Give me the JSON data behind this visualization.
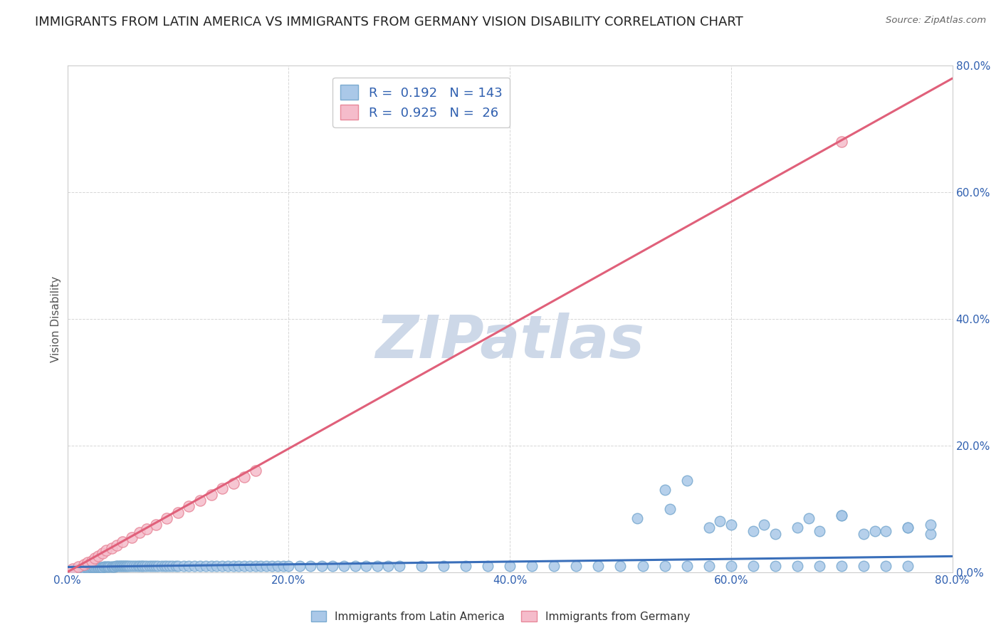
{
  "title": "IMMIGRANTS FROM LATIN AMERICA VS IMMIGRANTS FROM GERMANY VISION DISABILITY CORRELATION CHART",
  "source": "Source: ZipAtlas.com",
  "ylabel": "Vision Disability",
  "watermark": "ZIPatlas",
  "xlim": [
    0.0,
    0.8
  ],
  "ylim": [
    0.0,
    0.8
  ],
  "xtick_vals": [
    0.0,
    0.2,
    0.4,
    0.6,
    0.8
  ],
  "ytick_vals": [
    0.0,
    0.2,
    0.4,
    0.6,
    0.8
  ],
  "series": [
    {
      "label": "Immigrants from Latin America",
      "R": 0.192,
      "N": 143,
      "color": "#aac8e8",
      "edge_color": "#7aaad0",
      "line_color": "#3a6fba",
      "scatter_x": [
        0.005,
        0.008,
        0.01,
        0.012,
        0.014,
        0.015,
        0.016,
        0.017,
        0.018,
        0.019,
        0.02,
        0.021,
        0.022,
        0.023,
        0.024,
        0.025,
        0.026,
        0.027,
        0.028,
        0.029,
        0.03,
        0.031,
        0.032,
        0.033,
        0.034,
        0.035,
        0.036,
        0.037,
        0.038,
        0.04,
        0.041,
        0.042,
        0.043,
        0.044,
        0.045,
        0.046,
        0.047,
        0.048,
        0.049,
        0.05,
        0.051,
        0.052,
        0.053,
        0.054,
        0.055,
        0.056,
        0.058,
        0.06,
        0.062,
        0.064,
        0.065,
        0.067,
        0.068,
        0.07,
        0.072,
        0.074,
        0.076,
        0.078,
        0.08,
        0.082,
        0.085,
        0.088,
        0.09,
        0.092,
        0.095,
        0.098,
        0.1,
        0.105,
        0.11,
        0.115,
        0.12,
        0.125,
        0.13,
        0.135,
        0.14,
        0.145,
        0.15,
        0.155,
        0.16,
        0.165,
        0.17,
        0.175,
        0.18,
        0.185,
        0.19,
        0.195,
        0.2,
        0.21,
        0.22,
        0.23,
        0.24,
        0.25,
        0.26,
        0.27,
        0.28,
        0.29,
        0.3,
        0.32,
        0.34,
        0.36,
        0.38,
        0.4,
        0.42,
        0.44,
        0.46,
        0.48,
        0.5,
        0.52,
        0.54,
        0.56,
        0.58,
        0.6,
        0.62,
        0.64,
        0.66,
        0.68,
        0.7,
        0.72,
        0.74,
        0.76,
        0.515,
        0.545,
        0.59,
        0.63,
        0.67,
        0.7,
        0.73,
        0.76,
        0.78,
        0.54,
        0.56,
        0.58,
        0.6,
        0.62,
        0.64,
        0.66,
        0.68,
        0.7,
        0.72,
        0.74,
        0.76,
        0.78
      ],
      "scatter_y": [
        0.003,
        0.004,
        0.004,
        0.004,
        0.005,
        0.005,
        0.005,
        0.006,
        0.006,
        0.006,
        0.006,
        0.007,
        0.007,
        0.007,
        0.007,
        0.007,
        0.008,
        0.008,
        0.008,
        0.008,
        0.008,
        0.008,
        0.008,
        0.009,
        0.009,
        0.009,
        0.009,
        0.009,
        0.009,
        0.009,
        0.009,
        0.009,
        0.009,
        0.01,
        0.01,
        0.01,
        0.01,
        0.01,
        0.01,
        0.01,
        0.01,
        0.01,
        0.01,
        0.01,
        0.01,
        0.01,
        0.01,
        0.01,
        0.01,
        0.01,
        0.01,
        0.01,
        0.01,
        0.01,
        0.01,
        0.01,
        0.01,
        0.01,
        0.01,
        0.01,
        0.01,
        0.01,
        0.01,
        0.01,
        0.01,
        0.01,
        0.01,
        0.01,
        0.01,
        0.01,
        0.01,
        0.01,
        0.01,
        0.01,
        0.01,
        0.01,
        0.01,
        0.01,
        0.01,
        0.01,
        0.01,
        0.01,
        0.01,
        0.01,
        0.01,
        0.01,
        0.01,
        0.01,
        0.01,
        0.01,
        0.01,
        0.01,
        0.01,
        0.01,
        0.01,
        0.01,
        0.01,
        0.01,
        0.01,
        0.01,
        0.01,
        0.01,
        0.01,
        0.01,
        0.01,
        0.01,
        0.01,
        0.01,
        0.01,
        0.01,
        0.01,
        0.01,
        0.01,
        0.01,
        0.01,
        0.01,
        0.01,
        0.01,
        0.01,
        0.01,
        0.085,
        0.1,
        0.08,
        0.075,
        0.085,
        0.09,
        0.065,
        0.07,
        0.06,
        0.13,
        0.145,
        0.07,
        0.075,
        0.065,
        0.06,
        0.07,
        0.065,
        0.09,
        0.06,
        0.065,
        0.07,
        0.075
      ],
      "line_x": [
        0.0,
        0.8
      ],
      "line_y": [
        0.008,
        0.025
      ]
    },
    {
      "label": "Immigrants from Germany",
      "R": 0.925,
      "N": 26,
      "color": "#f5bccb",
      "edge_color": "#e8889a",
      "line_color": "#e0607a",
      "scatter_x": [
        0.005,
        0.01,
        0.015,
        0.018,
        0.022,
        0.025,
        0.028,
        0.032,
        0.035,
        0.04,
        0.045,
        0.05,
        0.058,
        0.065,
        0.072,
        0.08,
        0.09,
        0.1,
        0.11,
        0.12,
        0.13,
        0.14,
        0.15,
        0.16,
        0.7,
        0.17
      ],
      "scatter_y": [
        0.005,
        0.009,
        0.012,
        0.015,
        0.018,
        0.022,
        0.025,
        0.03,
        0.034,
        0.038,
        0.042,
        0.048,
        0.055,
        0.062,
        0.068,
        0.075,
        0.085,
        0.094,
        0.104,
        0.113,
        0.122,
        0.132,
        0.14,
        0.15,
        0.68,
        0.16
      ],
      "line_x": [
        0.0,
        0.8
      ],
      "line_y": [
        0.0,
        0.78
      ]
    }
  ],
  "background_color": "#ffffff",
  "grid_color": "#bbbbbb",
  "title_fontsize": 13,
  "axis_label_fontsize": 11,
  "tick_fontsize": 11,
  "watermark_color": "#cdd8e8",
  "watermark_fontsize": 60,
  "legend_fontsize": 13
}
